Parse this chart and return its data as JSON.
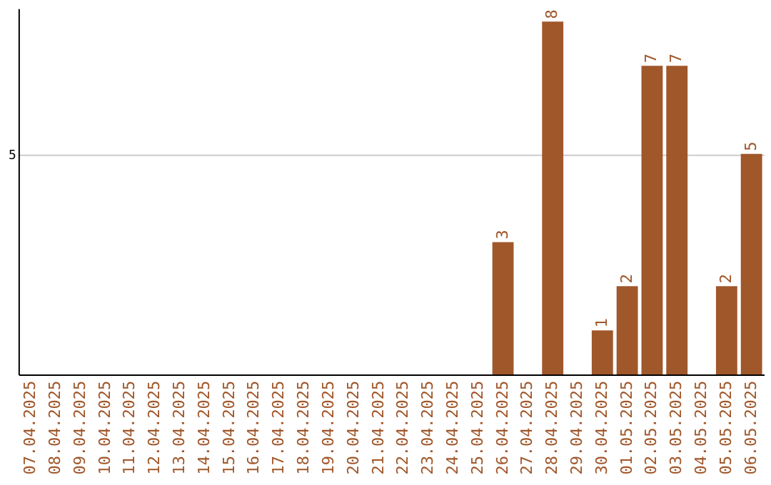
{
  "chart_data": {
    "type": "bar",
    "categories": [
      "07.04.2025",
      "08.04.2025",
      "09.04.2025",
      "10.04.2025",
      "11.04.2025",
      "12.04.2025",
      "13.04.2025",
      "14.04.2025",
      "15.04.2025",
      "16.04.2025",
      "17.04.2025",
      "18.04.2025",
      "19.04.2025",
      "20.04.2025",
      "21.04.2025",
      "22.04.2025",
      "23.04.2025",
      "24.04.2025",
      "25.04.2025",
      "26.04.2025",
      "27.04.2025",
      "28.04.2025",
      "29.04.2025",
      "30.04.2025",
      "01.05.2025",
      "02.05.2025",
      "03.05.2025",
      "04.05.2025",
      "05.05.2025",
      "06.05.2025"
    ],
    "values": [
      null,
      null,
      null,
      null,
      null,
      null,
      null,
      null,
      null,
      null,
      null,
      null,
      null,
      null,
      null,
      null,
      null,
      null,
      null,
      3,
      null,
      8,
      null,
      1,
      2,
      7,
      7,
      null,
      2,
      5
    ],
    "data_labels": true,
    "color": "#a0572a",
    "ylim": [
      0,
      8.3
    ],
    "yticks": [
      5
    ],
    "grid": "y"
  }
}
